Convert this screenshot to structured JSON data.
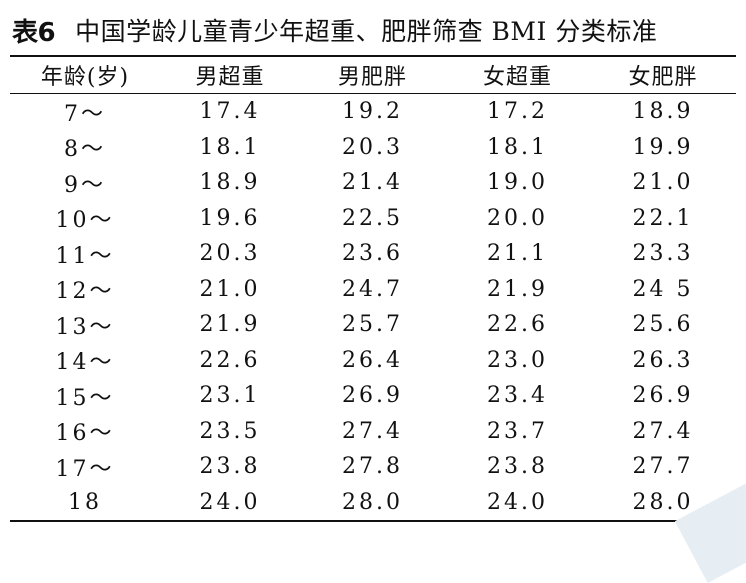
{
  "caption": {
    "label": "表6",
    "text": "中国学龄儿童青少年超重、肥胖筛查 BMI 分类标准"
  },
  "table": {
    "headers": [
      "年龄(岁)",
      "男超重",
      "男肥胖",
      "女超重",
      "女肥胖"
    ],
    "rows": [
      [
        "7～",
        "17.4",
        "19.2",
        "17.2",
        "18.9"
      ],
      [
        "8～",
        "18.1",
        "20.3",
        "18.1",
        "19.9"
      ],
      [
        "9～",
        "18.9",
        "21.4",
        "19.0",
        "21.0"
      ],
      [
        "10～",
        "19.6",
        "22.5",
        "20.0",
        "22.1"
      ],
      [
        "11～",
        "20.3",
        "23.6",
        "21.1",
        "23.3"
      ],
      [
        "12～",
        "21.0",
        "24.7",
        "21.9",
        "24 5"
      ],
      [
        "13～",
        "21.9",
        "25.7",
        "22.6",
        "25.6"
      ],
      [
        "14～",
        "22.6",
        "26.4",
        "23.0",
        "26.3"
      ],
      [
        "15～",
        "23.1",
        "26.9",
        "23.4",
        "26.9"
      ],
      [
        "16～",
        "23.5",
        "27.4",
        "23.7",
        "27.4"
      ],
      [
        "17～",
        "23.8",
        "27.8",
        "23.8",
        "27.7"
      ],
      [
        "18",
        "24.0",
        "28.0",
        "24.0",
        "28.0"
      ]
    ]
  }
}
